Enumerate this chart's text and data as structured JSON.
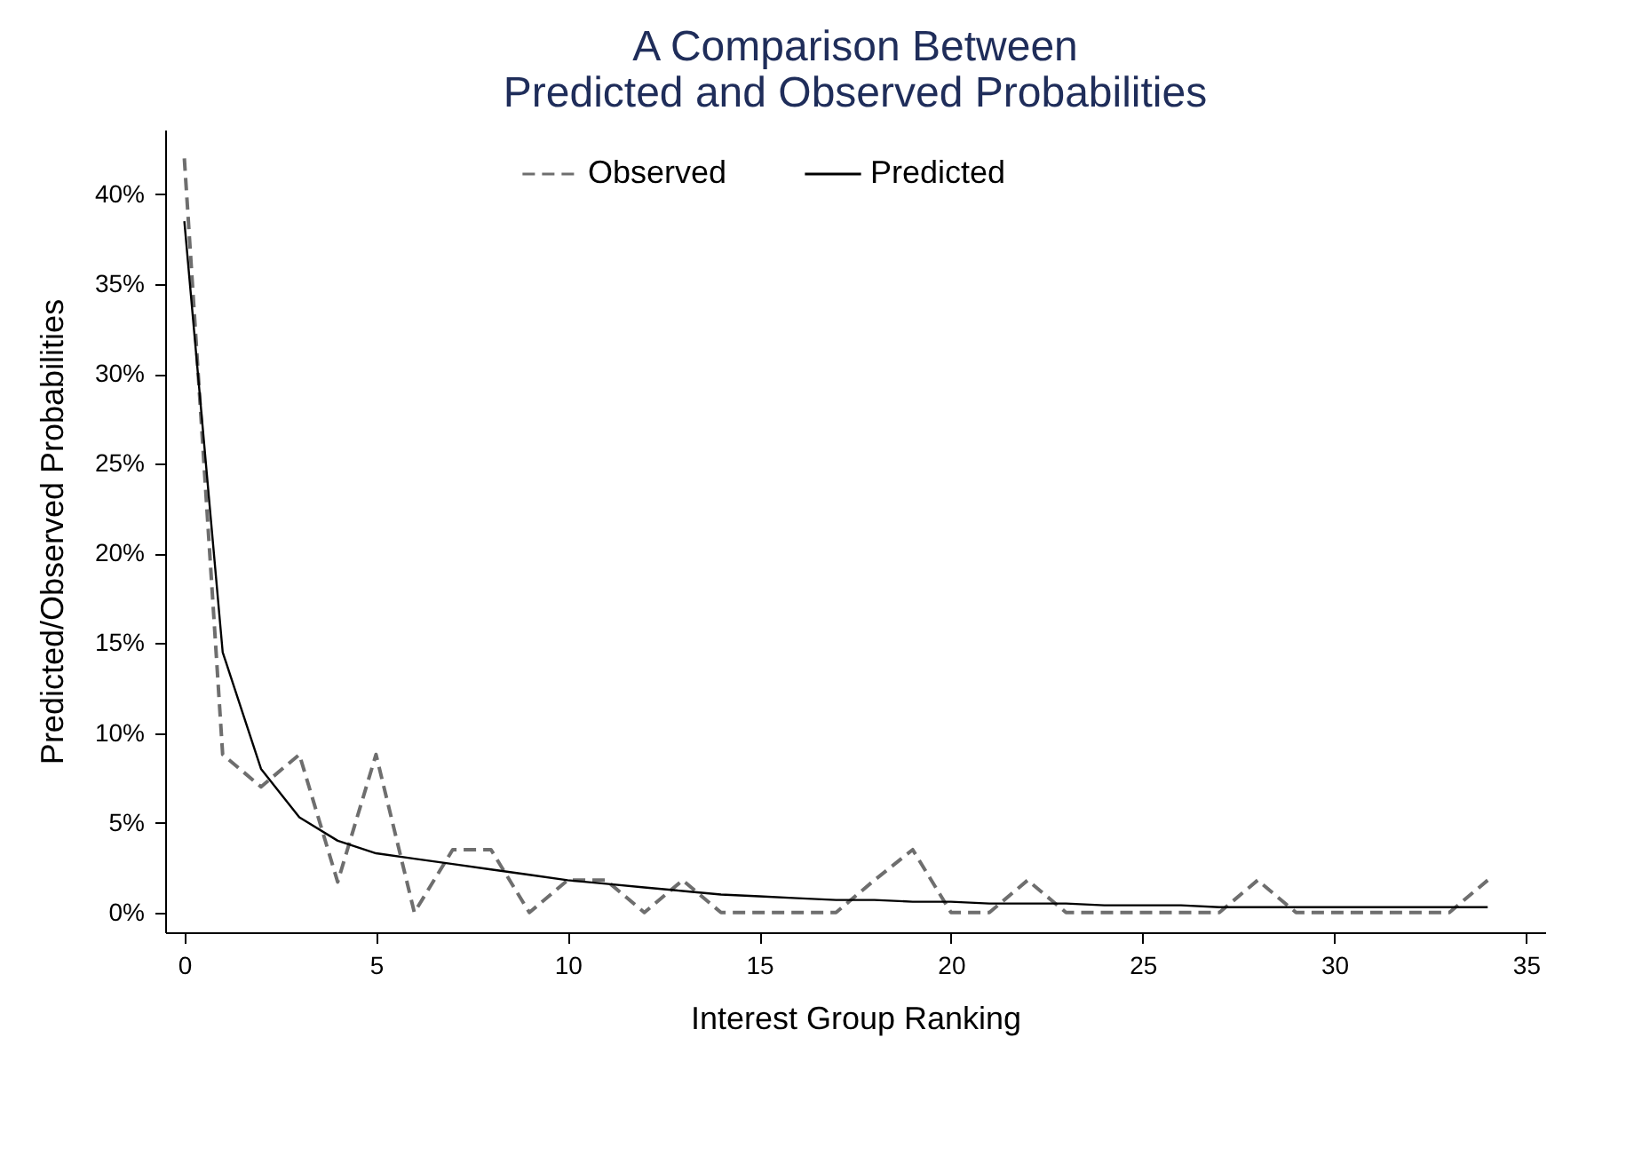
{
  "chart_data": {
    "type": "line",
    "title": "A Comparison Between\nPredicted and Observed Probabilities",
    "xlabel": "Interest Group Ranking",
    "ylabel": "Predicted/Observed Probabilities",
    "x": [
      0,
      1,
      2,
      3,
      4,
      5,
      6,
      7,
      8,
      9,
      10,
      11,
      12,
      13,
      14,
      15,
      16,
      17,
      18,
      19,
      20,
      21,
      22,
      23,
      24,
      25,
      26,
      27,
      28,
      29,
      30,
      31,
      32,
      33,
      34
    ],
    "series": [
      {
        "name": "Observed",
        "color": "#6e6e6e",
        "line_style": "dashed",
        "values": [
          42,
          8.8,
          7,
          8.8,
          1.7,
          8.8,
          0,
          3.5,
          3.5,
          0,
          1.8,
          1.8,
          0,
          1.8,
          0,
          0,
          0,
          0,
          1.8,
          3.5,
          0,
          0,
          1.8,
          0,
          0,
          0,
          0,
          0,
          1.8,
          0,
          0,
          0,
          0,
          0,
          1.8
        ]
      },
      {
        "name": "Predicted",
        "color": "#000000",
        "line_style": "solid",
        "values": [
          38.5,
          14.5,
          8,
          5.3,
          4,
          3.3,
          3,
          2.7,
          2.4,
          2.1,
          1.8,
          1.6,
          1.4,
          1.2,
          1.0,
          0.9,
          0.8,
          0.7,
          0.7,
          0.6,
          0.6,
          0.5,
          0.5,
          0.5,
          0.4,
          0.4,
          0.4,
          0.3,
          0.3,
          0.3,
          0.3,
          0.3,
          0.3,
          0.3,
          0.3
        ]
      }
    ],
    "xlim": [
      -0.5,
      35.5
    ],
    "xticks": [
      0,
      5,
      10,
      15,
      20,
      25,
      30,
      35
    ],
    "ylim": [
      -1.1,
      43.6
    ],
    "yticks": [
      {
        "value": 0,
        "label": "0%"
      },
      {
        "value": 5,
        "label": "5%"
      },
      {
        "value": 10,
        "label": "10%"
      },
      {
        "value": 15,
        "label": "15%"
      },
      {
        "value": 20,
        "label": "20%"
      },
      {
        "value": 25,
        "label": "25%"
      },
      {
        "value": 30,
        "label": "30%"
      },
      {
        "value": 35,
        "label": "35%"
      },
      {
        "value": 40,
        "label": "40%"
      }
    ],
    "legend": "top"
  }
}
